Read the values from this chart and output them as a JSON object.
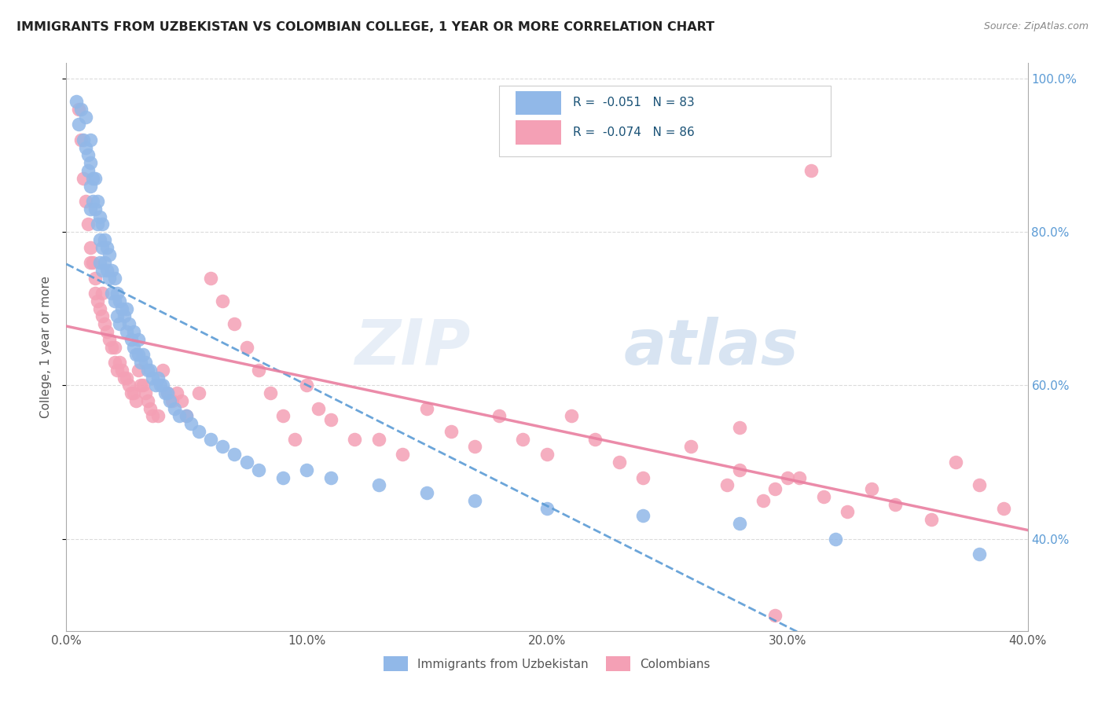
{
  "title": "IMMIGRANTS FROM UZBEKISTAN VS COLOMBIAN COLLEGE, 1 YEAR OR MORE CORRELATION CHART",
  "source": "Source: ZipAtlas.com",
  "ylabel": "College, 1 year or more",
  "xlim": [
    0.0,
    0.4
  ],
  "ylim": [
    0.28,
    1.02
  ],
  "xticks": [
    0.0,
    0.1,
    0.2,
    0.3,
    0.4
  ],
  "xtick_labels": [
    "0.0%",
    "10.0%",
    "20.0%",
    "30.0%",
    "40.0%"
  ],
  "yticks": [
    0.4,
    0.6,
    0.8,
    1.0
  ],
  "ytick_labels": [
    "40.0%",
    "60.0%",
    "80.0%",
    "100.0%"
  ],
  "legend_r_blue": "-0.051",
  "legend_n_blue": "83",
  "legend_r_pink": "-0.074",
  "legend_n_pink": "86",
  "legend_label_blue": "Immigrants from Uzbekistan",
  "legend_label_pink": "Colombians",
  "blue_color": "#91b8e8",
  "pink_color": "#f4a0b5",
  "trendline_blue_color": "#5b9bd5",
  "trendline_pink_color": "#e97fa0",
  "watermark_zip": "ZIP",
  "watermark_atlas": "atlas",
  "blue_x": [
    0.004,
    0.005,
    0.006,
    0.007,
    0.008,
    0.008,
    0.009,
    0.009,
    0.01,
    0.01,
    0.01,
    0.01,
    0.011,
    0.011,
    0.012,
    0.012,
    0.013,
    0.013,
    0.014,
    0.014,
    0.014,
    0.015,
    0.015,
    0.015,
    0.016,
    0.016,
    0.017,
    0.017,
    0.018,
    0.018,
    0.019,
    0.019,
    0.02,
    0.02,
    0.021,
    0.021,
    0.022,
    0.022,
    0.023,
    0.024,
    0.025,
    0.025,
    0.026,
    0.027,
    0.028,
    0.028,
    0.029,
    0.03,
    0.03,
    0.031,
    0.032,
    0.033,
    0.034,
    0.035,
    0.036,
    0.037,
    0.038,
    0.039,
    0.04,
    0.041,
    0.042,
    0.043,
    0.045,
    0.047,
    0.05,
    0.052,
    0.055,
    0.06,
    0.065,
    0.07,
    0.075,
    0.08,
    0.09,
    0.1,
    0.11,
    0.13,
    0.15,
    0.17,
    0.2,
    0.24,
    0.28,
    0.32,
    0.38
  ],
  "blue_y": [
    0.97,
    0.94,
    0.96,
    0.92,
    0.95,
    0.91,
    0.9,
    0.88,
    0.92,
    0.89,
    0.86,
    0.83,
    0.87,
    0.84,
    0.87,
    0.83,
    0.84,
    0.81,
    0.82,
    0.79,
    0.76,
    0.81,
    0.78,
    0.75,
    0.79,
    0.76,
    0.78,
    0.75,
    0.77,
    0.74,
    0.75,
    0.72,
    0.74,
    0.71,
    0.72,
    0.69,
    0.71,
    0.68,
    0.7,
    0.69,
    0.7,
    0.67,
    0.68,
    0.66,
    0.67,
    0.65,
    0.64,
    0.66,
    0.64,
    0.63,
    0.64,
    0.63,
    0.62,
    0.62,
    0.61,
    0.6,
    0.61,
    0.6,
    0.6,
    0.59,
    0.59,
    0.58,
    0.57,
    0.56,
    0.56,
    0.55,
    0.54,
    0.53,
    0.52,
    0.51,
    0.5,
    0.49,
    0.48,
    0.49,
    0.48,
    0.47,
    0.46,
    0.45,
    0.44,
    0.43,
    0.42,
    0.4,
    0.38
  ],
  "pink_x": [
    0.005,
    0.006,
    0.007,
    0.008,
    0.009,
    0.01,
    0.01,
    0.011,
    0.012,
    0.012,
    0.013,
    0.014,
    0.015,
    0.015,
    0.016,
    0.017,
    0.018,
    0.019,
    0.02,
    0.02,
    0.021,
    0.022,
    0.023,
    0.024,
    0.025,
    0.026,
    0.027,
    0.028,
    0.029,
    0.03,
    0.031,
    0.032,
    0.033,
    0.034,
    0.035,
    0.036,
    0.038,
    0.04,
    0.042,
    0.044,
    0.046,
    0.048,
    0.05,
    0.055,
    0.06,
    0.065,
    0.07,
    0.075,
    0.08,
    0.085,
    0.09,
    0.095,
    0.1,
    0.105,
    0.11,
    0.12,
    0.13,
    0.14,
    0.15,
    0.16,
    0.17,
    0.18,
    0.19,
    0.2,
    0.21,
    0.22,
    0.23,
    0.24,
    0.26,
    0.28,
    0.295,
    0.305,
    0.315,
    0.325,
    0.335,
    0.345,
    0.36,
    0.37,
    0.38,
    0.39,
    0.3,
    0.275,
    0.29,
    0.31,
    0.28,
    0.295
  ],
  "pink_y": [
    0.96,
    0.92,
    0.87,
    0.84,
    0.81,
    0.78,
    0.76,
    0.76,
    0.74,
    0.72,
    0.71,
    0.7,
    0.72,
    0.69,
    0.68,
    0.67,
    0.66,
    0.65,
    0.65,
    0.63,
    0.62,
    0.63,
    0.62,
    0.61,
    0.61,
    0.6,
    0.59,
    0.59,
    0.58,
    0.62,
    0.6,
    0.6,
    0.59,
    0.58,
    0.57,
    0.56,
    0.56,
    0.62,
    0.59,
    0.58,
    0.59,
    0.58,
    0.56,
    0.59,
    0.74,
    0.71,
    0.68,
    0.65,
    0.62,
    0.59,
    0.56,
    0.53,
    0.6,
    0.57,
    0.555,
    0.53,
    0.53,
    0.51,
    0.57,
    0.54,
    0.52,
    0.56,
    0.53,
    0.51,
    0.56,
    0.53,
    0.5,
    0.48,
    0.52,
    0.49,
    0.465,
    0.48,
    0.455,
    0.435,
    0.465,
    0.445,
    0.425,
    0.5,
    0.47,
    0.44,
    0.48,
    0.47,
    0.45,
    0.88,
    0.545,
    0.3
  ]
}
